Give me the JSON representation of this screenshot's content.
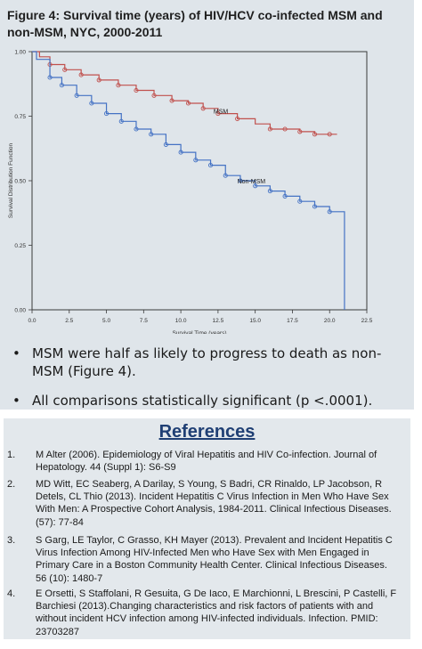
{
  "figure": {
    "title": "Figure 4: Survival time (years) of HIV/HCV co-infected MSM and non-MSM, NYC, 2000-2011"
  },
  "chart_data": {
    "type": "line",
    "title": "",
    "xlabel": "Survival Time (years)",
    "ylabel": "Survival Distribution Function",
    "xlim": [
      0,
      22.5
    ],
    "ylim": [
      0,
      1
    ],
    "x_ticks": [
      "0.0",
      "2.5",
      "5.0",
      "7.5",
      "10.0",
      "12.5",
      "15.0",
      "17.5",
      "20.0",
      "22.5"
    ],
    "y_ticks": [
      "0.00",
      "0.25",
      "0.50",
      "0.75",
      "1.00"
    ],
    "grid": false,
    "step": true,
    "series": [
      {
        "name": "MSM",
        "color": "#c0504d",
        "x": [
          0,
          0.5,
          1.2,
          2.2,
          3.3,
          4.5,
          5.8,
          7.0,
          8.2,
          9.4,
          10.5,
          11.5,
          12.5,
          13.8,
          15.0,
          16.0,
          17.0,
          18.0,
          19.0,
          20.0
        ],
        "y": [
          1.0,
          0.98,
          0.95,
          0.93,
          0.91,
          0.89,
          0.87,
          0.85,
          0.83,
          0.81,
          0.8,
          0.78,
          0.76,
          0.74,
          0.72,
          0.7,
          0.7,
          0.69,
          0.68,
          0.68
        ],
        "markers_x": [
          1.2,
          2.2,
          3.3,
          4.5,
          5.8,
          7.0,
          8.2,
          9.4,
          10.5,
          11.5,
          12.5,
          13.8,
          16.0,
          17.0,
          18.0,
          19.0,
          20.0
        ],
        "markers_y": [
          0.95,
          0.93,
          0.91,
          0.89,
          0.87,
          0.85,
          0.83,
          0.81,
          0.8,
          0.78,
          0.76,
          0.74,
          0.7,
          0.7,
          0.69,
          0.68,
          0.68
        ],
        "end_x": 20.5,
        "end_y": 0.68
      },
      {
        "name": "Non-MSM",
        "color": "#4472c4",
        "x": [
          0,
          0.3,
          1.2,
          2.0,
          3.0,
          4.0,
          5.0,
          6.0,
          7.0,
          8.0,
          9.0,
          10.0,
          11.0,
          12.0,
          13.0,
          14.0,
          15.0,
          16.0,
          17.0,
          18.0,
          19.0,
          20.0,
          20.6
        ],
        "y": [
          1.0,
          0.97,
          0.9,
          0.87,
          0.83,
          0.8,
          0.76,
          0.73,
          0.7,
          0.68,
          0.64,
          0.61,
          0.58,
          0.56,
          0.52,
          0.5,
          0.48,
          0.46,
          0.44,
          0.42,
          0.4,
          0.38,
          0.38
        ],
        "markers_x": [
          1.2,
          2.0,
          3.0,
          4.0,
          5.0,
          6.0,
          7.0,
          8.0,
          9.0,
          10.0,
          11.0,
          12.0,
          13.0,
          14.0,
          15.0,
          16.0,
          17.0,
          18.0,
          19.0,
          20.0
        ],
        "markers_y": [
          0.9,
          0.87,
          0.83,
          0.8,
          0.76,
          0.73,
          0.7,
          0.68,
          0.64,
          0.61,
          0.58,
          0.56,
          0.52,
          0.5,
          0.48,
          0.46,
          0.44,
          0.42,
          0.4,
          0.38
        ],
        "end_x": 21.0,
        "end_y": 0.0
      }
    ],
    "annotations": [
      {
        "text": "MSM",
        "x": 12.2,
        "y": 0.76,
        "color": "#1a1a1a"
      },
      {
        "text": "Non-MSM",
        "x": 13.8,
        "y": 0.49,
        "color": "#1a1a1a"
      }
    ]
  },
  "bullets": [
    {
      "symbol": "•",
      "text": "MSM were half as likely to progress to death as non-MSM (Figure 4)."
    },
    {
      "symbol": "•",
      "text": "All comparisons statistically significant (p <.0001)."
    }
  ],
  "references": {
    "title": "References",
    "items": [
      {
        "num": "1.",
        "text": "M Alter (2006). Epidemiology of Viral Hepatitis and HIV Co-infection. Journal of Hepatology. 44 (Suppl 1): S6-S9"
      },
      {
        "num": "2.",
        "text": "MD Witt, EC Seaberg, A Darilay, S Young, S Badri, CR Rinaldo, LP Jacobson, R Detels, CL Thio (2013). Incident Hepatitis C Virus Infection in Men Who Have Sex With Men: A Prospective Cohort Analysis, 1984-2011. Clinical Infectious Diseases. (57): 77-84"
      },
      {
        "num": "3.",
        "text": "S Garg, LE Taylor, C Grasso, KH Mayer (2013). Prevalent and Incident Hepatitis C Virus Infection Among HIV-Infected Men who Have Sex with Men Engaged in Primary Care in a Boston Community Health Center. Clinical Infectious Diseases. 56 (10): 1480-7"
      },
      {
        "num": "4.",
        "text": "E Orsetti, S Staffolani, R Gesuita, G De Iaco, E Marchionni, L Brescini, P Castelli, F Barchiesi (2013).Changing characteristics and risk factors of patients with and without incident HCV infection among HIV-infected individuals. Infection. PMID: 23703287"
      }
    ]
  }
}
